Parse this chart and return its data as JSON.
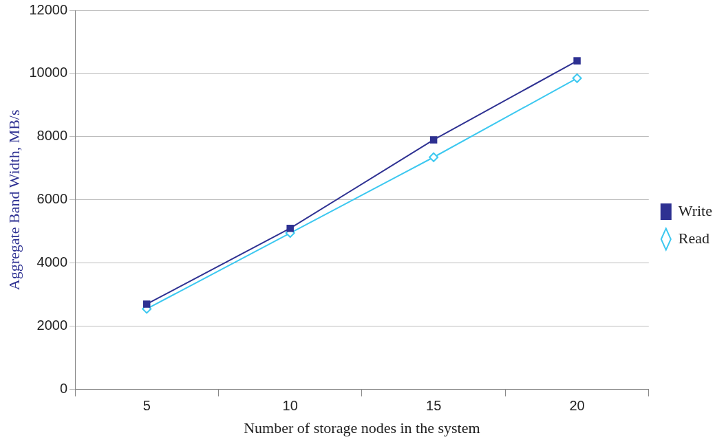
{
  "chart_data": {
    "type": "line",
    "xlabel": "Number of storage nodes in the system",
    "ylabel": "Aggregate Band Width, MB/s",
    "categories": [
      "5",
      "10",
      "15",
      "20"
    ],
    "series": [
      {
        "name": "Write",
        "color": "#2e3192",
        "marker": "square",
        "values": [
          2700,
          5100,
          7900,
          10400
        ]
      },
      {
        "name": "Read",
        "color": "#3cc8f0",
        "marker": "diamond",
        "values": [
          2550,
          4950,
          7350,
          9850
        ]
      }
    ],
    "ylim": [
      0,
      12000
    ],
    "yticks": [
      0,
      2000,
      4000,
      6000,
      8000,
      10000,
      12000
    ],
    "grid": "y",
    "legend": "right",
    "line_style": "solid"
  }
}
